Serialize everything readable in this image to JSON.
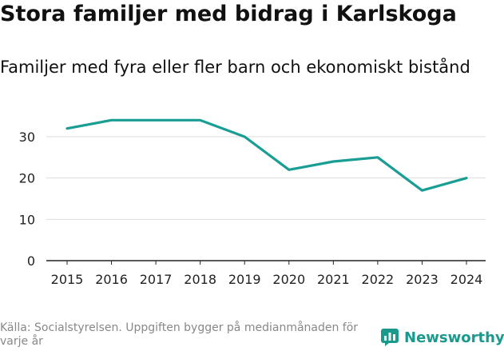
{
  "header": {
    "title": "Stora familjer med bidrag i Karlskoga",
    "subtitle": "Familjer med fyra eller fler barn och ekonomiskt bistånd"
  },
  "chart_data": {
    "type": "line",
    "title": "Stora familjer med bidrag i Karlskoga",
    "subtitle": "Familjer med fyra eller fler barn och ekonomiskt bistånd",
    "xlabel": "",
    "ylabel": "",
    "x": [
      "2015",
      "2016",
      "2017",
      "2018",
      "2019",
      "2020",
      "2021",
      "2022",
      "2023",
      "2024"
    ],
    "series": [
      {
        "name": "Familjer",
        "values": [
          32,
          34,
          34,
          34,
          30,
          22,
          24,
          25,
          17,
          20
        ],
        "color": "#1a9e93"
      }
    ],
    "ylim": [
      0,
      36
    ],
    "yticks": [
      "0",
      "10",
      "20",
      "30"
    ],
    "grid": true
  },
  "footer": {
    "source": "Källa: Socialstyrelsen. Uppgiften bygger på medianmånaden för varje år",
    "brand": "Newsworthy",
    "brand_color": "#1a9a8c"
  }
}
